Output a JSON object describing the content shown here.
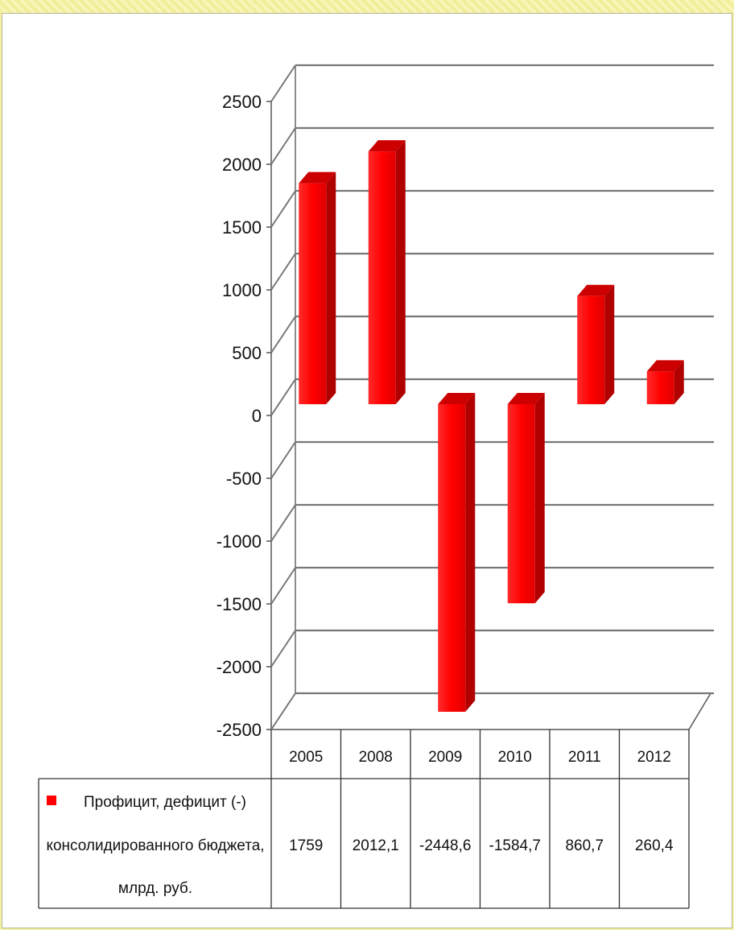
{
  "chart_data": {
    "type": "bar",
    "categories": [
      "2005",
      "2008",
      "2009",
      "2010",
      "2011",
      "2012"
    ],
    "series": [
      {
        "name": "Профицит, дефицит (-) консолидированного бюджета, млрд. руб.",
        "name_lines": [
          "Профицит, дефицит (-)",
          "консолидированного бюджета,",
          "млрд. руб."
        ],
        "values": [
          1759,
          2012.1,
          -2448.6,
          -1584.7,
          860.7,
          260.4
        ],
        "value_labels": [
          "1759",
          "2012,1",
          "-2448,6",
          "-1584,7",
          "860,7",
          "260,4"
        ],
        "color": "#ff0000"
      }
    ],
    "yticks": [
      "2500",
      "2000",
      "1500",
      "1000",
      "500",
      "0",
      "-500",
      "-1000",
      "-1500",
      "-2000",
      "-2500"
    ],
    "ylim": [
      -2500,
      2500
    ],
    "grid": true,
    "legend": "data-table",
    "title": "",
    "xlabel": "",
    "ylabel": ""
  }
}
